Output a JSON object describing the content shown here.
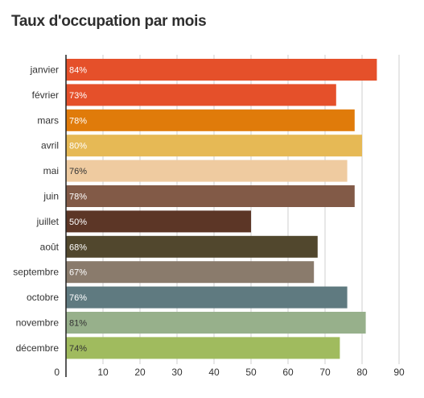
{
  "chart_data": {
    "type": "bar",
    "orientation": "horizontal",
    "title": "Taux d'occupation par mois",
    "xlabel": "",
    "ylabel": "",
    "xlim": [
      0,
      90
    ],
    "xticks": [
      0,
      10,
      20,
      30,
      40,
      50,
      60,
      70,
      80,
      90
    ],
    "grid": true,
    "categories": [
      "janvier",
      "février",
      "mars",
      "avril",
      "mai",
      "juin",
      "juillet",
      "août",
      "septembre",
      "octobre",
      "novembre",
      "décembre"
    ],
    "values": [
      84,
      73,
      78,
      80,
      76,
      78,
      50,
      68,
      67,
      76,
      81,
      74
    ],
    "labels": [
      "84%",
      "73%",
      "78%",
      "80%",
      "76%",
      "78%",
      "50%",
      "68%",
      "67%",
      "76%",
      "81%",
      "74%"
    ],
    "colors": [
      "#e5502a",
      "#e5502a",
      "#e07b0a",
      "#e6b955",
      "#efcba0",
      "#825a47",
      "#5c3626",
      "#51472d",
      "#8a7b6c",
      "#5f7a80",
      "#97b08b",
      "#a0bb5e"
    ],
    "label_colors": [
      "#ffffff",
      "#ffffff",
      "#ffffff",
      "#ffffff",
      "#333333",
      "#ffffff",
      "#ffffff",
      "#ffffff",
      "#ffffff",
      "#ffffff",
      "#333333",
      "#333333"
    ]
  }
}
